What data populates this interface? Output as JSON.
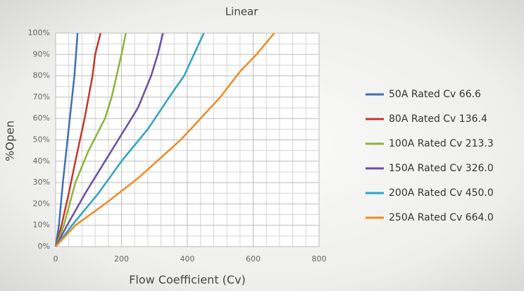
{
  "chart_data": {
    "type": "line",
    "title": "Linear",
    "x_label": "Flow Coefficient (Cv)",
    "y_label": "%Open",
    "xlim": [
      0,
      800
    ],
    "xticks": [
      0,
      200,
      400,
      600,
      800
    ],
    "ylim": [
      0,
      100
    ],
    "yticks": [
      {
        "value": 0,
        "label": "0%"
      },
      {
        "value": 10,
        "label": "10%"
      },
      {
        "value": 20,
        "label": "20%"
      },
      {
        "value": 30,
        "label": "30%"
      },
      {
        "value": 40,
        "label": "40%"
      },
      {
        "value": 50,
        "label": "50%"
      },
      {
        "value": 60,
        "label": "60%"
      },
      {
        "value": 70,
        "label": "70%"
      },
      {
        "value": 80,
        "label": "80%"
      },
      {
        "value": 90,
        "label": "90%"
      },
      {
        "value": 100,
        "label": "100%"
      }
    ],
    "grid": true,
    "legend": "right",
    "series": [
      {
        "name": "50A Rated Cv 66.6",
        "color": "#3f6fb5",
        "x": [
          0,
          10,
          22,
          36,
          50,
          57,
          66.6
        ],
        "values": [
          0,
          10,
          30,
          50,
          70,
          80,
          100
        ]
      },
      {
        "name": "80A Rated Cv 136.4",
        "color": "#c0392b",
        "x": [
          0,
          18,
          40,
          60,
          88,
          112,
          120,
          136.4
        ],
        "values": [
          0,
          10,
          25,
          40,
          60,
          80,
          90,
          100
        ]
      },
      {
        "name": "100A Rated Cv 213.3",
        "color": "#8db33a",
        "x": [
          0,
          25,
          60,
          100,
          150,
          170,
          185,
          200,
          213.3
        ],
        "values": [
          0,
          10,
          30,
          45,
          60,
          70,
          80,
          90,
          100
        ]
      },
      {
        "name": "150A Rated Cv 326.0",
        "color": "#6a4fa3",
        "x": [
          0,
          35,
          90,
          150,
          210,
          250,
          290,
          310,
          326
        ],
        "values": [
          0,
          10,
          25,
          40,
          55,
          65,
          80,
          90,
          100
        ]
      },
      {
        "name": "200A Rated Cv 450.0",
        "color": "#2ea3c4",
        "x": [
          0,
          50,
          130,
          200,
          280,
          345,
          390,
          420,
          450
        ],
        "values": [
          0,
          10,
          25,
          40,
          55,
          70,
          80,
          90,
          100
        ]
      },
      {
        "name": "250A Rated Cv 664.0",
        "color": "#f08a24",
        "x": [
          0,
          60,
          150,
          250,
          380,
          500,
          560,
          610,
          664
        ],
        "values": [
          0,
          10,
          20,
          32,
          50,
          70,
          82,
          90,
          100
        ]
      }
    ]
  }
}
